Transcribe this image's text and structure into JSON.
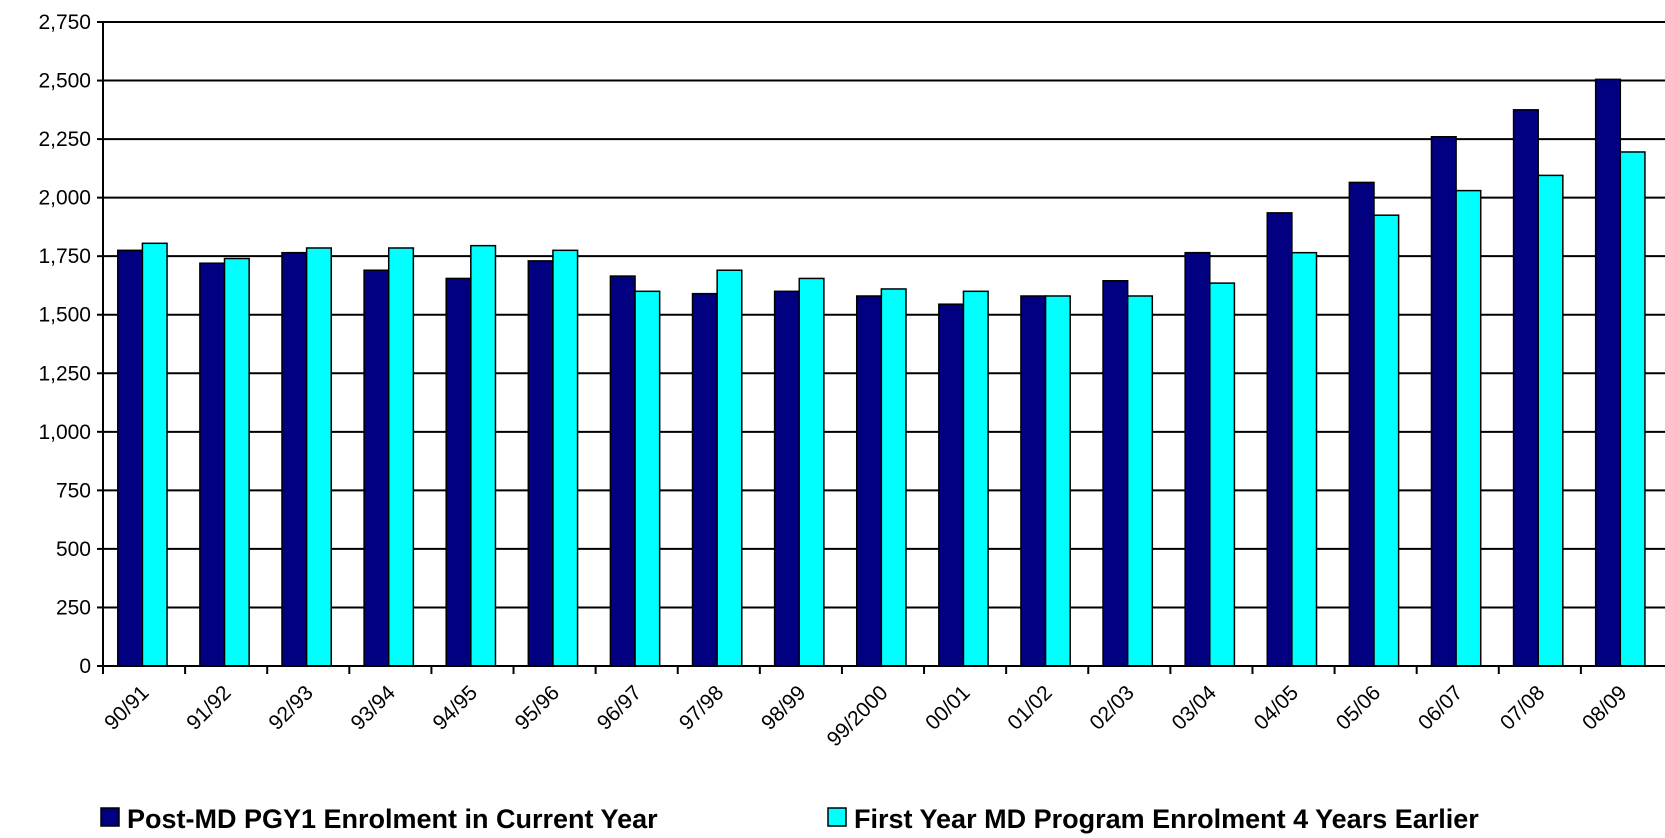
{
  "chart_data": {
    "type": "bar",
    "categories": [
      "90/91",
      "91/92",
      "92/93",
      "93/94",
      "94/95",
      "95/96",
      "96/97",
      "97/98",
      "98/99",
      "99/2000",
      "00/01",
      "01/02",
      "02/03",
      "03/04",
      "04/05",
      "05/06",
      "06/07",
      "07/08",
      "08/09"
    ],
    "series": [
      {
        "name": "Post-MD PGY1 Enrolment in Current Year",
        "color": "#000080",
        "values": [
          1775,
          1720,
          1765,
          1690,
          1655,
          1730,
          1665,
          1590,
          1600,
          1580,
          1545,
          1580,
          1645,
          1765,
          1935,
          2065,
          2260,
          2375,
          2505
        ]
      },
      {
        "name": "First Year MD Program Enrolment 4 Years Earlier",
        "color": "#00ffff",
        "values": [
          1805,
          1740,
          1785,
          1785,
          1795,
          1775,
          1600,
          1690,
          1655,
          1610,
          1600,
          1580,
          1580,
          1635,
          1765,
          1925,
          2030,
          2095,
          2195
        ]
      }
    ],
    "ylim": [
      0,
      2750
    ],
    "yticks": [
      0,
      250,
      500,
      750,
      {
        "value": 1000,
        "label": "1,000"
      },
      {
        "value": 1250,
        "label": "1,250"
      },
      {
        "value": 1500,
        "label": "1,500"
      },
      {
        "value": 1750,
        "label": "1,750"
      },
      {
        "value": 2000,
        "label": "2,000"
      },
      {
        "value": 2250,
        "label": "2,250"
      },
      {
        "value": 2500,
        "label": "2,500"
      },
      {
        "value": 2750,
        "label": "2,750"
      }
    ],
    "grid": true,
    "legend": "bottom"
  }
}
